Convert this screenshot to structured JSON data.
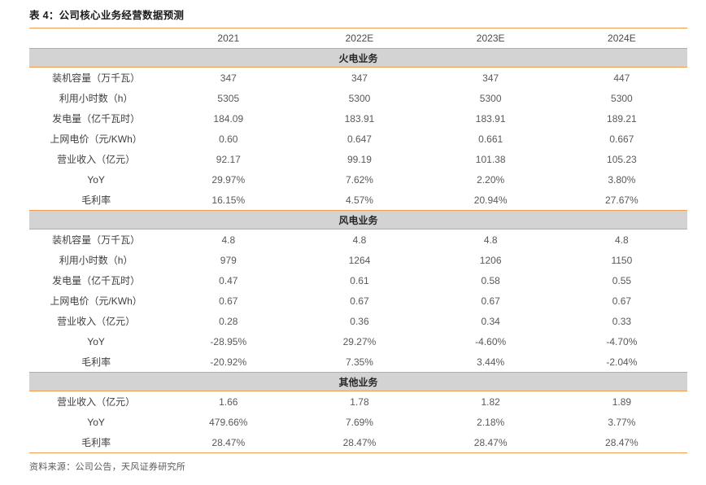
{
  "title": "表 4：公司核心业务经营数据预测",
  "source_note": "资料来源：公司公告，天风证券研究所",
  "colors": {
    "accent_orange": "#F19C54",
    "section_header_bg": "#D3D3D3",
    "value_text": "#595959",
    "title_text": "#1A1A1A"
  },
  "chart_data": {
    "type": "table",
    "columns": [
      "",
      "2021",
      "2022E",
      "2023E",
      "2024E"
    ],
    "sections": [
      {
        "name": "火电业务",
        "rows": [
          {
            "label": "装机容量（万千瓦）",
            "values": [
              "347",
              "347",
              "347",
              "447"
            ]
          },
          {
            "label": "利用小时数（h）",
            "values": [
              "5305",
              "5300",
              "5300",
              "5300"
            ]
          },
          {
            "label": "发电量（亿千瓦时）",
            "values": [
              "184.09",
              "183.91",
              "183.91",
              "189.21"
            ]
          },
          {
            "label": "上网电价（元/KWh）",
            "values": [
              "0.60",
              "0.647",
              "0.661",
              "0.667"
            ]
          },
          {
            "label": "营业收入（亿元）",
            "values": [
              "92.17",
              "99.19",
              "101.38",
              "105.23"
            ]
          },
          {
            "label": "YoY",
            "values": [
              "29.97%",
              "7.62%",
              "2.20%",
              "3.80%"
            ]
          },
          {
            "label": "毛利率",
            "values": [
              "16.15%",
              "4.57%",
              "20.94%",
              "27.67%"
            ]
          }
        ]
      },
      {
        "name": "风电业务",
        "rows": [
          {
            "label": "装机容量（万千瓦）",
            "values": [
              "4.8",
              "4.8",
              "4.8",
              "4.8"
            ]
          },
          {
            "label": "利用小时数（h）",
            "values": [
              "979",
              "1264",
              "1206",
              "1150"
            ]
          },
          {
            "label": "发电量（亿千瓦时）",
            "values": [
              "0.47",
              "0.61",
              "0.58",
              "0.55"
            ]
          },
          {
            "label": "上网电价（元/KWh）",
            "values": [
              "0.67",
              "0.67",
              "0.67",
              "0.67"
            ]
          },
          {
            "label": "营业收入（亿元）",
            "values": [
              "0.28",
              "0.36",
              "0.34",
              "0.33"
            ]
          },
          {
            "label": "YoY",
            "values": [
              "-28.95%",
              "29.27%",
              "-4.60%",
              "-4.70%"
            ]
          },
          {
            "label": "毛利率",
            "values": [
              "-20.92%",
              "7.35%",
              "3.44%",
              "-2.04%"
            ]
          }
        ]
      },
      {
        "name": "其他业务",
        "rows": [
          {
            "label": "营业收入（亿元）",
            "values": [
              "1.66",
              "1.78",
              "1.82",
              "1.89"
            ]
          },
          {
            "label": "YoY",
            "values": [
              "479.66%",
              "7.69%",
              "2.18%",
              "3.77%"
            ]
          },
          {
            "label": "毛利率",
            "values": [
              "28.47%",
              "28.47%",
              "28.47%",
              "28.47%"
            ]
          }
        ]
      }
    ]
  }
}
